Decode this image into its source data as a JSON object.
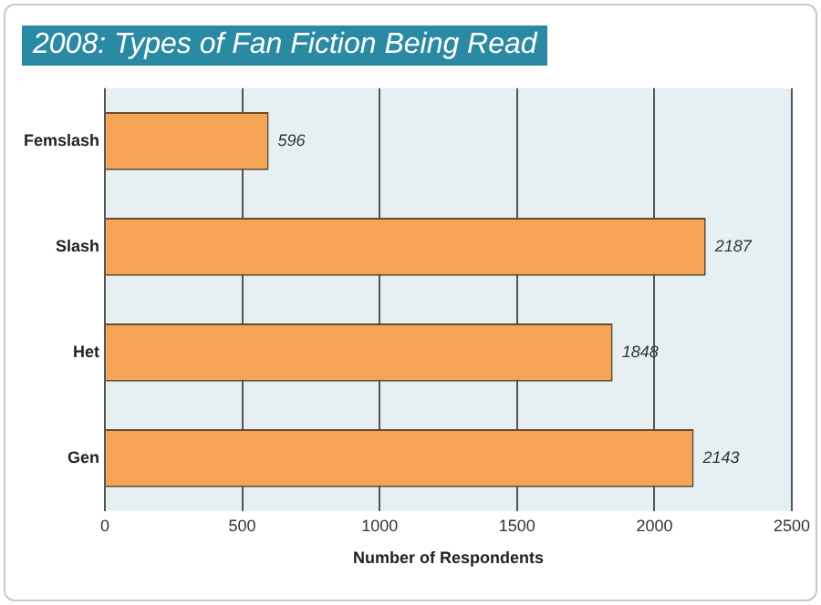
{
  "chart_data": {
    "type": "bar",
    "orientation": "horizontal",
    "title": "2008: Types of Fan Fiction Being Read",
    "xlabel": "Number of Respondents",
    "categories": [
      "Femslash",
      "Slash",
      "Het",
      "Gen"
    ],
    "values": [
      596,
      2187,
      1848,
      2143
    ],
    "color": "#f5a455",
    "xlim": [
      0,
      2500
    ],
    "xticks": [
      0,
      500,
      1000,
      1500,
      2000,
      2500
    ],
    "grid": "x",
    "data_labels": true,
    "legend": false
  }
}
